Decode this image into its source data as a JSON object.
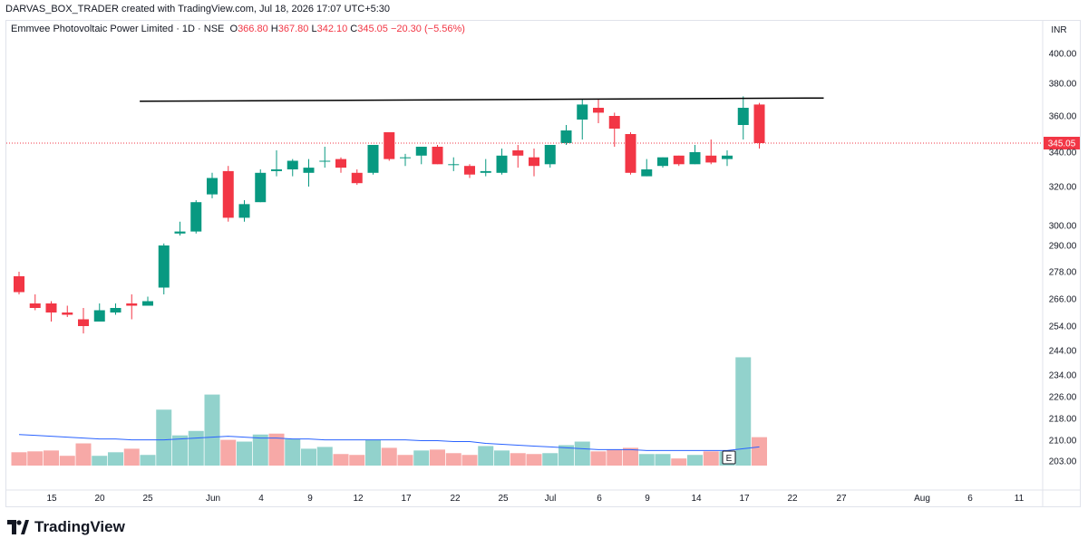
{
  "header": {
    "caption": "DARVAS_BOX_TRADER created with TradingView.com, Jul 18, 2026 17:07 UTC+5:30"
  },
  "legend": {
    "symbol": "Emmvee Photovoltaic Power Limited · 1D · NSE",
    "o_label": "O",
    "o_value": "366.80",
    "h_label": "H",
    "h_value": "367.80",
    "l_label": "L",
    "l_value": "342.10",
    "c_label": "C",
    "c_value": "345.05",
    "change": "−20.30 (−5.56%)"
  },
  "currency": "INR",
  "last_price_label": "345.05",
  "earnings_marker": "E",
  "logo_text": "TradingView",
  "colors": {
    "up": "#089981",
    "down": "#f23645",
    "vol_up": "#92d2cc",
    "vol_down": "#f7a9a7",
    "ma": "#2962ff",
    "trendline": "#000000"
  },
  "chart_data": {
    "type": "candlestick",
    "price_axis": {
      "ticks": [
        400,
        380,
        360,
        340,
        320,
        300,
        290,
        278,
        266,
        254,
        244,
        234,
        226,
        218,
        210,
        203
      ],
      "labels": [
        "400.00",
        "380.00",
        "360.00",
        "340.00",
        "320.00",
        "300.00",
        "290.00",
        "278.00",
        "266.00",
        "254.00",
        "244.00",
        "234.00",
        "226.00",
        "218.00",
        "210.00",
        "203.00"
      ]
    },
    "x_axis_ticks": [
      "15",
      "20",
      "25",
      "Jun",
      "4",
      "9",
      "12",
      "17",
      "22",
      "25",
      "Jul",
      "6",
      "9",
      "14",
      "17",
      "22",
      "27",
      "Aug",
      "6",
      "11"
    ],
    "candles": [
      {
        "o": 276,
        "h": 278,
        "l": 268,
        "c": 269
      },
      {
        "o": 264,
        "h": 268,
        "l": 261,
        "c": 262
      },
      {
        "o": 264,
        "h": 265,
        "l": 256,
        "c": 260
      },
      {
        "o": 260,
        "h": 263,
        "l": 258,
        "c": 259
      },
      {
        "o": 257,
        "h": 262,
        "l": 251,
        "c": 254
      },
      {
        "o": 256,
        "h": 264,
        "l": 256,
        "c": 261
      },
      {
        "o": 260,
        "h": 264,
        "l": 259,
        "c": 262
      },
      {
        "o": 264,
        "h": 268,
        "l": 257,
        "c": 263
      },
      {
        "o": 263,
        "h": 267,
        "l": 263,
        "c": 265
      },
      {
        "o": 271,
        "h": 291,
        "l": 268,
        "c": 290
      },
      {
        "o": 296,
        "h": 302,
        "l": 295,
        "c": 297
      },
      {
        "o": 297,
        "h": 313,
        "l": 296,
        "c": 312
      },
      {
        "o": 316,
        "h": 328,
        "l": 314,
        "c": 325
      },
      {
        "o": 329,
        "h": 332,
        "l": 302,
        "c": 304
      },
      {
        "o": 304,
        "h": 313,
        "l": 302,
        "c": 311
      },
      {
        "o": 312,
        "h": 330,
        "l": 312,
        "c": 328
      },
      {
        "o": 329,
        "h": 341,
        "l": 326,
        "c": 330
      },
      {
        "o": 330,
        "h": 336,
        "l": 326,
        "c": 335
      },
      {
        "o": 328,
        "h": 336,
        "l": 320,
        "c": 331
      },
      {
        "o": 335,
        "h": 343,
        "l": 331,
        "c": 335
      },
      {
        "o": 336,
        "h": 337,
        "l": 328,
        "c": 331
      },
      {
        "o": 328,
        "h": 330,
        "l": 321,
        "c": 322
      },
      {
        "o": 328,
        "h": 344,
        "l": 327,
        "c": 344
      },
      {
        "o": 351,
        "h": 351,
        "l": 335,
        "c": 336
      },
      {
        "o": 337,
        "h": 339,
        "l": 332,
        "c": 337
      },
      {
        "o": 338,
        "h": 343,
        "l": 333,
        "c": 343
      },
      {
        "o": 343,
        "h": 344,
        "l": 333,
        "c": 333
      },
      {
        "o": 333,
        "h": 337,
        "l": 329,
        "c": 333
      },
      {
        "o": 332,
        "h": 333,
        "l": 325,
        "c": 327
      },
      {
        "o": 328,
        "h": 336,
        "l": 326,
        "c": 329
      },
      {
        "o": 328,
        "h": 342,
        "l": 327,
        "c": 338
      },
      {
        "o": 341,
        "h": 344,
        "l": 331,
        "c": 338
      },
      {
        "o": 337,
        "h": 342,
        "l": 326,
        "c": 332
      },
      {
        "o": 333,
        "h": 344,
        "l": 331,
        "c": 344
      },
      {
        "o": 345,
        "h": 355,
        "l": 344,
        "c": 352
      },
      {
        "o": 358,
        "h": 370,
        "l": 347,
        "c": 367
      },
      {
        "o": 365,
        "h": 370,
        "l": 356,
        "c": 362
      },
      {
        "o": 360,
        "h": 362,
        "l": 343,
        "c": 353
      },
      {
        "o": 350,
        "h": 351,
        "l": 327,
        "c": 328
      },
      {
        "o": 326,
        "h": 336,
        "l": 326,
        "c": 330
      },
      {
        "o": 332,
        "h": 337,
        "l": 331,
        "c": 337
      },
      {
        "o": 338,
        "h": 338,
        "l": 332,
        "c": 333
      },
      {
        "o": 333,
        "h": 344,
        "l": 333,
        "c": 340
      },
      {
        "o": 338,
        "h": 347,
        "l": 333,
        "c": 334
      },
      {
        "o": 336,
        "h": 341,
        "l": 332,
        "c": 338
      },
      {
        "o": 355,
        "h": 372,
        "l": 347,
        "c": 365
      },
      {
        "o": 367,
        "h": 368,
        "l": 342,
        "c": 345
      }
    ],
    "volume": {
      "bars": [
        {
          "v": 15,
          "up": false
        },
        {
          "v": 16,
          "up": false
        },
        {
          "v": 17,
          "up": false
        },
        {
          "v": 11,
          "up": false
        },
        {
          "v": 25,
          "up": false
        },
        {
          "v": 11,
          "up": true
        },
        {
          "v": 15,
          "up": true
        },
        {
          "v": 19,
          "up": false
        },
        {
          "v": 12,
          "up": true
        },
        {
          "v": 63,
          "up": true
        },
        {
          "v": 34,
          "up": true
        },
        {
          "v": 39,
          "up": true
        },
        {
          "v": 80,
          "up": true
        },
        {
          "v": 29,
          "up": false
        },
        {
          "v": 27,
          "up": true
        },
        {
          "v": 35,
          "up": true
        },
        {
          "v": 36,
          "up": false
        },
        {
          "v": 30,
          "up": true
        },
        {
          "v": 19,
          "up": true
        },
        {
          "v": 21,
          "up": true
        },
        {
          "v": 13,
          "up": false
        },
        {
          "v": 12,
          "up": false
        },
        {
          "v": 29,
          "up": true
        },
        {
          "v": 20,
          "up": false
        },
        {
          "v": 12,
          "up": false
        },
        {
          "v": 17,
          "up": true
        },
        {
          "v": 18,
          "up": false
        },
        {
          "v": 14,
          "up": false
        },
        {
          "v": 12,
          "up": false
        },
        {
          "v": 22,
          "up": true
        },
        {
          "v": 17,
          "up": true
        },
        {
          "v": 14,
          "up": false
        },
        {
          "v": 13,
          "up": false
        },
        {
          "v": 14,
          "up": true
        },
        {
          "v": 23,
          "up": true
        },
        {
          "v": 27,
          "up": true
        },
        {
          "v": 16,
          "up": false
        },
        {
          "v": 18,
          "up": false
        },
        {
          "v": 20,
          "up": false
        },
        {
          "v": 13,
          "up": true
        },
        {
          "v": 13,
          "up": true
        },
        {
          "v": 8,
          "up": false
        },
        {
          "v": 12,
          "up": true
        },
        {
          "v": 16,
          "up": false
        },
        {
          "v": 16,
          "up": true
        },
        {
          "v": 122,
          "up": true
        },
        {
          "v": 32,
          "up": false
        }
      ],
      "ma": [
        35,
        34,
        33,
        32,
        31,
        30,
        30,
        29,
        29,
        29,
        30,
        31,
        32,
        33,
        32,
        31,
        31,
        30,
        30,
        29,
        29,
        29,
        29,
        29,
        29,
        28,
        28,
        27,
        27,
        25,
        24,
        23,
        22,
        21,
        20,
        19,
        18,
        18,
        18,
        17,
        17,
        17,
        17,
        17,
        17,
        19,
        21
      ]
    },
    "trendline": {
      "from": {
        "bar": 7.5,
        "price": 369
      },
      "to": {
        "bar": 50,
        "price": 371
      }
    }
  }
}
